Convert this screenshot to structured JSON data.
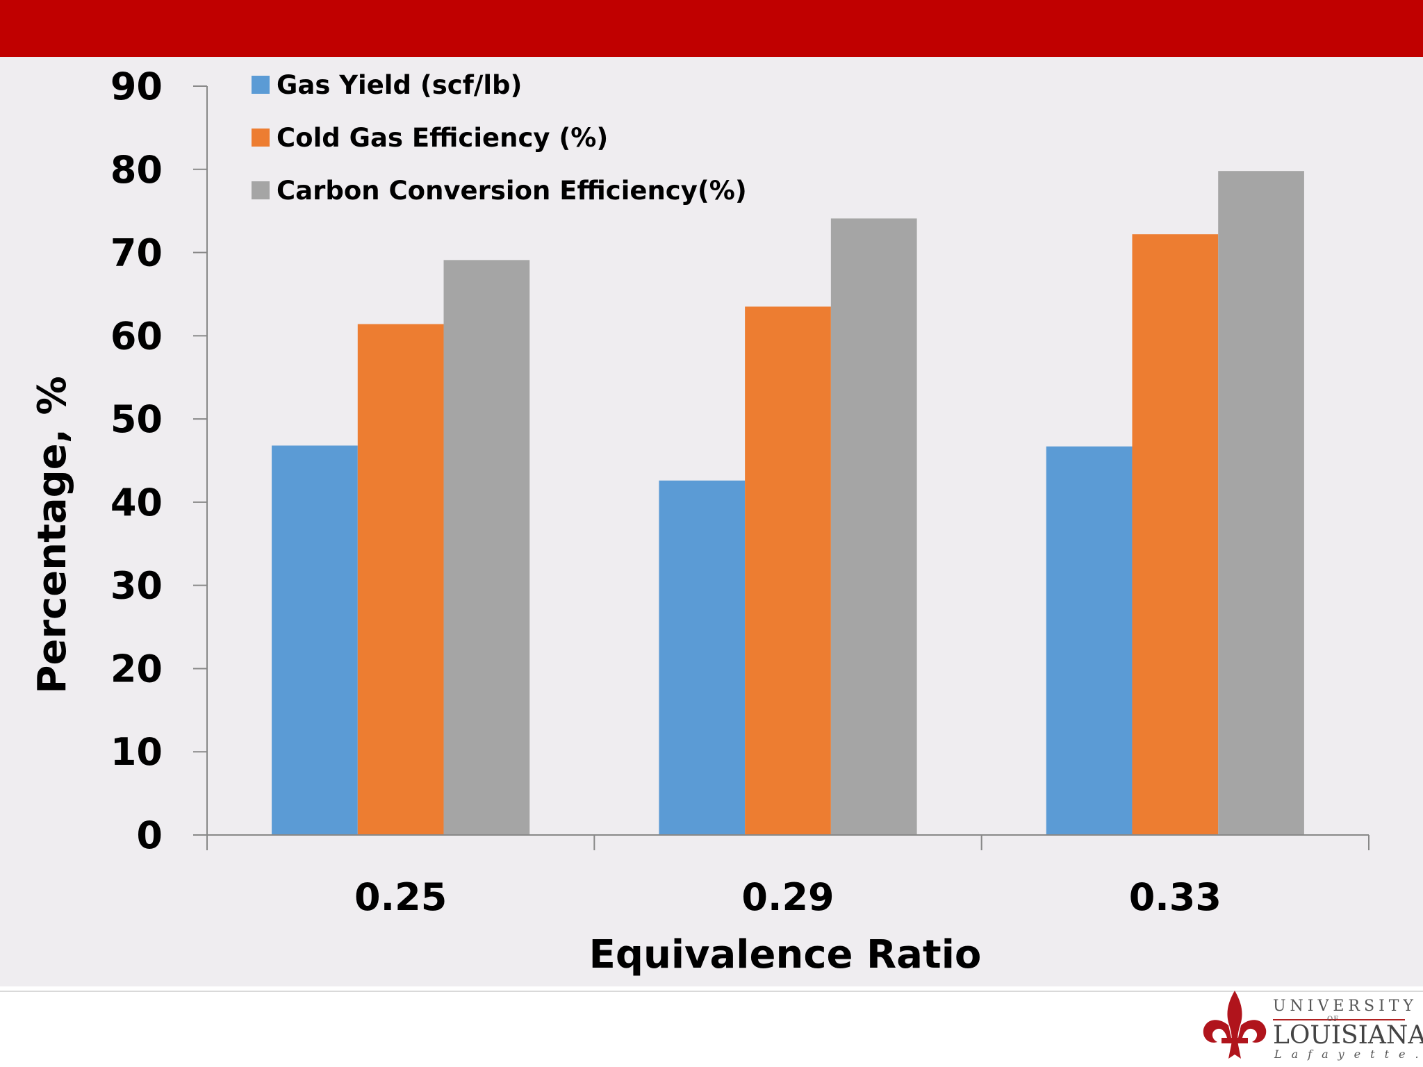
{
  "chart_data": {
    "type": "bar",
    "title": "",
    "xlabel": "Equivalence Ratio",
    "ylabel": "Percentage, %",
    "ylim": [
      0,
      90
    ],
    "yticks": [
      0,
      10,
      20,
      30,
      40,
      50,
      60,
      70,
      80,
      90
    ],
    "categories": [
      "0.25",
      "0.29",
      "0.33"
    ],
    "legend_position": "top-left",
    "grid": false,
    "series": [
      {
        "name": "Gas Yield (scf/lb)",
        "color": "#5b9bd5",
        "values": [
          46.8,
          42.6,
          46.7
        ]
      },
      {
        "name": "Cold Gas Efficiency (%)",
        "color": "#ed7d31",
        "values": [
          61.4,
          63.5,
          72.2
        ]
      },
      {
        "name": "Carbon Conversion Efficiency(%)",
        "color": "#a5a5a5",
        "values": [
          69.1,
          74.1,
          79.8
        ]
      }
    ]
  },
  "logo": {
    "line1": "UNIVERSITY",
    "line2": "OF",
    "line3": "LOUISIANA",
    "line4": "Lafayette."
  },
  "colors": {
    "banner": "#c00000",
    "background": "#efedf0",
    "logo_accent": "#b02020"
  }
}
